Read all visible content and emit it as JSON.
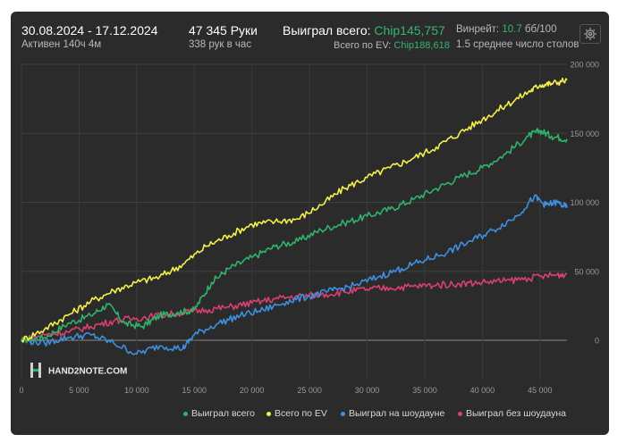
{
  "header": {
    "date_range": "30.08.2024 - 17.12.2024",
    "active": "Активен 140ч 4м",
    "hands": "47 345 Руки",
    "hands_per_hour": "338 рук в час",
    "won_total_label": "Выиграл всего:",
    "won_total_value": "Chip145,757",
    "ev_total_label": "Всего по EV:",
    "ev_total_value": "Chip188,618",
    "winrate_label": "Винрейт:",
    "winrate_value": "10.7",
    "winrate_unit": "бб/100",
    "avg_tables": "1.5 среднее число столов"
  },
  "logo_text": "HAND2NOTE.COM",
  "colors": {
    "won": "#2fb36b",
    "ev": "#f4f04a",
    "showdown": "#3f8fe0",
    "nonshowdown": "#d9406e",
    "accent_green": "#35b56e"
  },
  "chart_data": {
    "type": "line",
    "xlim": [
      0,
      47345
    ],
    "ylim": [
      -30000,
      200000
    ],
    "x_ticks": [
      0,
      5000,
      10000,
      15000,
      20000,
      25000,
      30000,
      35000,
      40000,
      45000
    ],
    "x_tick_labels": [
      "0",
      "5 000",
      "10 000",
      "15 000",
      "20 000",
      "25 000",
      "30 000",
      "35 000",
      "40 000",
      "45 000"
    ],
    "y_ticks": [
      0,
      50000,
      100000,
      150000,
      200000
    ],
    "y_tick_labels": [
      "0",
      "50 000",
      "100 000",
      "150 000",
      "200 000"
    ],
    "grid": true,
    "legend_position": "bottom-right",
    "series": [
      {
        "name": "Выиграл всего",
        "color_key": "won",
        "x": [
          0,
          2000,
          4000,
          6000,
          7500,
          9000,
          10500,
          12000,
          13500,
          15000,
          16500,
          18000,
          20000,
          22000,
          24000,
          26000,
          28000,
          30000,
          32000,
          34000,
          36000,
          38000,
          40000,
          42000,
          44000,
          45000,
          46000,
          47345
        ],
        "y": [
          0,
          2000,
          12000,
          18000,
          26000,
          12000,
          10000,
          18000,
          20000,
          22000,
          42000,
          52000,
          60000,
          68000,
          72000,
          80000,
          85000,
          90000,
          95000,
          102000,
          110000,
          118000,
          125000,
          135000,
          148000,
          152000,
          148000,
          145757
        ]
      },
      {
        "name": "Всего по EV",
        "color_key": "ev",
        "x": [
          0,
          2000,
          4000,
          6000,
          8000,
          10000,
          12000,
          14000,
          16000,
          18000,
          20000,
          22000,
          24000,
          26000,
          28000,
          30000,
          32000,
          34000,
          36000,
          38000,
          40000,
          42000,
          44000,
          45000,
          46000,
          47345
        ],
        "y": [
          0,
          8000,
          18000,
          28000,
          36000,
          42000,
          46000,
          55000,
          68000,
          76000,
          84000,
          86000,
          88000,
          98000,
          110000,
          118000,
          125000,
          132000,
          140000,
          150000,
          160000,
          170000,
          180000,
          185000,
          186000,
          188618
        ]
      },
      {
        "name": "Выиграл на шоудауне",
        "color_key": "showdown",
        "x": [
          0,
          2000,
          4000,
          6000,
          8000,
          10000,
          12000,
          14000,
          15000,
          17000,
          19000,
          21000,
          23000,
          25000,
          27000,
          29000,
          31000,
          33000,
          35000,
          37000,
          39000,
          41000,
          43000,
          44500,
          45500,
          46500,
          47345
        ],
        "y": [
          0,
          -2000,
          2000,
          4000,
          -2000,
          -10000,
          -4000,
          -6000,
          4000,
          12000,
          18000,
          22000,
          28000,
          32000,
          36000,
          40000,
          46000,
          52000,
          58000,
          64000,
          72000,
          80000,
          90000,
          104000,
          98000,
          100000,
          96000
        ]
      },
      {
        "name": "Выиграл без шоудауна",
        "color_key": "nonshowdown",
        "x": [
          0,
          2000,
          4000,
          6000,
          8000,
          10000,
          12000,
          14000,
          16000,
          18000,
          20000,
          22000,
          24000,
          26000,
          28000,
          30000,
          32000,
          34000,
          36000,
          38000,
          40000,
          42000,
          44000,
          46000,
          47345
        ],
        "y": [
          0,
          4000,
          6000,
          10000,
          14000,
          16000,
          18000,
          20000,
          22000,
          24000,
          27000,
          30000,
          32000,
          33000,
          35000,
          37000,
          38000,
          39000,
          40000,
          41000,
          42000,
          43000,
          45000,
          47000,
          48000
        ]
      }
    ]
  }
}
